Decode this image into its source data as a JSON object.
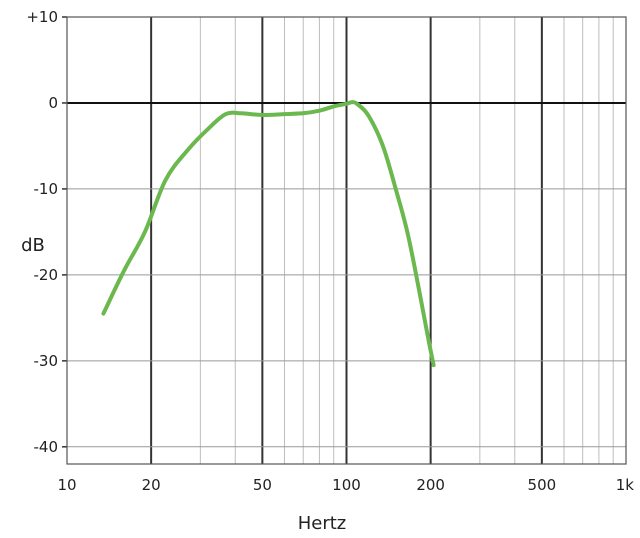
{
  "chart_data": {
    "type": "line",
    "title": "",
    "xlabel": "Hertz",
    "ylabel": "dB",
    "x_scale": "log",
    "xlim": [
      10,
      1000
    ],
    "ylim": [
      -42,
      10
    ],
    "grid": true,
    "x_ticks": [
      {
        "value": 10,
        "label": "10"
      },
      {
        "value": 20,
        "label": "20"
      },
      {
        "value": 50,
        "label": "50"
      },
      {
        "value": 100,
        "label": "100"
      },
      {
        "value": 200,
        "label": "200"
      },
      {
        "value": 500,
        "label": "500"
      },
      {
        "value": 1000,
        "label": "1k"
      }
    ],
    "y_ticks": [
      {
        "value": 10,
        "label": "+10"
      },
      {
        "value": 0,
        "label": "0"
      },
      {
        "value": -10,
        "label": "-10"
      },
      {
        "value": -20,
        "label": "-20"
      },
      {
        "value": -30,
        "label": "-30"
      },
      {
        "value": -40,
        "label": "-40"
      }
    ],
    "series": [
      {
        "color": "#6ab84e",
        "points": [
          [
            13.5,
            -24.5
          ],
          [
            16,
            -19.5
          ],
          [
            19,
            -15
          ],
          [
            22.5,
            -9
          ],
          [
            27,
            -5.5
          ],
          [
            32,
            -3
          ],
          [
            37,
            -1.3
          ],
          [
            42,
            -1.2
          ],
          [
            50,
            -1.4
          ],
          [
            60,
            -1.3
          ],
          [
            70,
            -1.2
          ],
          [
            80,
            -0.9
          ],
          [
            90,
            -0.4
          ],
          [
            100,
            -0.1
          ],
          [
            105,
            0.1
          ],
          [
            110,
            -0.2
          ],
          [
            120,
            -1.5
          ],
          [
            135,
            -5
          ],
          [
            150,
            -10
          ],
          [
            165,
            -15
          ],
          [
            180,
            -21
          ],
          [
            195,
            -27
          ],
          [
            205,
            -30.5
          ]
        ]
      }
    ]
  }
}
